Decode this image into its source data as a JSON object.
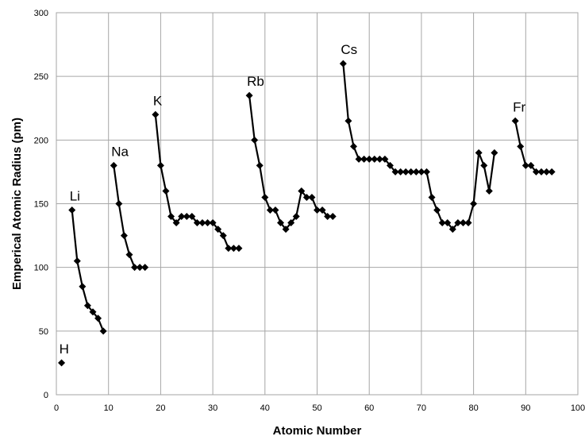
{
  "chart_data": {
    "type": "line",
    "xlabel": "Atomic Number",
    "ylabel": "Emperical Atomic Radius (pm)",
    "xlim": [
      0,
      100
    ],
    "ylim": [
      0,
      300
    ],
    "xticks": [
      0,
      10,
      20,
      30,
      40,
      50,
      60,
      70,
      80,
      90,
      100
    ],
    "yticks": [
      0,
      50,
      100,
      150,
      200,
      250,
      300
    ],
    "grid": true,
    "series": [
      {
        "points": [
          [
            1,
            25
          ]
        ]
      },
      {
        "points": [
          [
            3,
            145
          ],
          [
            4,
            105
          ],
          [
            5,
            85
          ],
          [
            6,
            70
          ],
          [
            7,
            65
          ],
          [
            8,
            60
          ],
          [
            9,
            50
          ]
        ]
      },
      {
        "points": [
          [
            11,
            180
          ],
          [
            12,
            150
          ],
          [
            13,
            125
          ],
          [
            14,
            110
          ],
          [
            15,
            100
          ],
          [
            16,
            100
          ],
          [
            17,
            100
          ]
        ]
      },
      {
        "points": [
          [
            19,
            220
          ],
          [
            20,
            180
          ],
          [
            21,
            160
          ],
          [
            22,
            140
          ],
          [
            23,
            135
          ],
          [
            24,
            140
          ],
          [
            25,
            140
          ],
          [
            26,
            140
          ],
          [
            27,
            135
          ],
          [
            28,
            135
          ],
          [
            29,
            135
          ],
          [
            30,
            135
          ],
          [
            31,
            130
          ],
          [
            32,
            125
          ],
          [
            33,
            115
          ],
          [
            34,
            115
          ],
          [
            35,
            115
          ]
        ]
      },
      {
        "points": [
          [
            37,
            235
          ],
          [
            38,
            200
          ],
          [
            39,
            180
          ],
          [
            40,
            155
          ],
          [
            41,
            145
          ],
          [
            42,
            145
          ],
          [
            43,
            135
          ],
          [
            44,
            130
          ],
          [
            45,
            135
          ],
          [
            46,
            140
          ],
          [
            47,
            160
          ],
          [
            48,
            155
          ],
          [
            49,
            155
          ],
          [
            50,
            145
          ],
          [
            51,
            145
          ],
          [
            52,
            140
          ],
          [
            53,
            140
          ]
        ]
      },
      {
        "points": [
          [
            55,
            260
          ],
          [
            56,
            215
          ],
          [
            57,
            195
          ],
          [
            58,
            185
          ],
          [
            59,
            185
          ],
          [
            60,
            185
          ],
          [
            61,
            185
          ],
          [
            62,
            185
          ],
          [
            63,
            185
          ],
          [
            64,
            180
          ],
          [
            65,
            175
          ],
          [
            66,
            175
          ],
          [
            67,
            175
          ],
          [
            68,
            175
          ],
          [
            69,
            175
          ],
          [
            70,
            175
          ],
          [
            71,
            175
          ],
          [
            72,
            155
          ],
          [
            73,
            145
          ],
          [
            74,
            135
          ],
          [
            75,
            135
          ],
          [
            76,
            130
          ],
          [
            77,
            135
          ],
          [
            78,
            135
          ],
          [
            79,
            135
          ],
          [
            80,
            150
          ],
          [
            81,
            190
          ],
          [
            82,
            180
          ],
          [
            83,
            160
          ],
          [
            84,
            190
          ]
        ]
      },
      {
        "points": [
          [
            88,
            215
          ],
          [
            89,
            195
          ],
          [
            90,
            180
          ],
          [
            91,
            180
          ],
          [
            92,
            175
          ],
          [
            93,
            175
          ],
          [
            94,
            175
          ],
          [
            95,
            175
          ]
        ]
      }
    ],
    "annotations": [
      {
        "text": "H",
        "x": 1,
        "y": 25
      },
      {
        "text": "Li",
        "x": 3,
        "y": 145
      },
      {
        "text": "Na",
        "x": 11,
        "y": 180
      },
      {
        "text": "K",
        "x": 19,
        "y": 220
      },
      {
        "text": "Rb",
        "x": 37,
        "y": 235
      },
      {
        "text": "Cs",
        "x": 55,
        "y": 260
      },
      {
        "text": "Fr",
        "x": 88,
        "y": 215
      }
    ]
  }
}
